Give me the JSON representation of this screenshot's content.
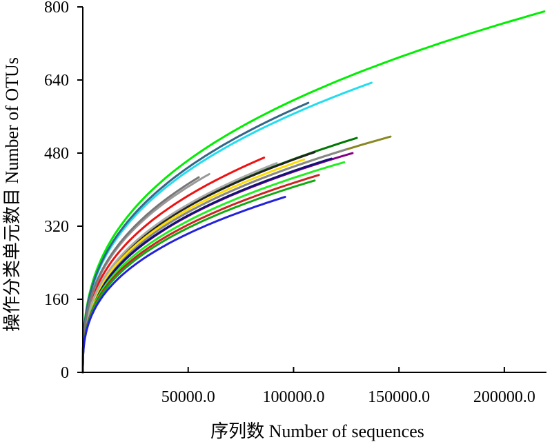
{
  "chart_data": {
    "type": "line",
    "title": "",
    "xlabel": "序列数 Number of sequences",
    "ylabel": "操作分类单元数目 Number of OTUs",
    "xlim": [
      0,
      220000
    ],
    "ylim": [
      0,
      800
    ],
    "x_ticks": [
      50000,
      100000,
      150000,
      200000
    ],
    "x_tick_labels": [
      "50000.0",
      "100000.0",
      "150000.0",
      "200000.0"
    ],
    "y_ticks": [
      0,
      160,
      320,
      480,
      640,
      800
    ],
    "y_tick_labels": [
      "0",
      "160",
      "320",
      "480",
      "640",
      "800"
    ],
    "grid": false,
    "legend": "none",
    "curve_model": "y = ymax * x^0.36 / xmax^0.36 (rarefaction curves, estimated endpoints)",
    "series": [
      {
        "color": "#00ee00",
        "xmax": 219000,
        "ymax": 790
      },
      {
        "color": "#22ddee",
        "xmax": 137000,
        "ymax": 634
      },
      {
        "color": "#336688",
        "xmax": 107000,
        "ymax": 590
      },
      {
        "color": "#888822",
        "xmax": 146000,
        "ymax": 516
      },
      {
        "color": "#007700",
        "xmax": 130000,
        "ymax": 513
      },
      {
        "color": "#888888",
        "xmax": 125000,
        "ymax": 488
      },
      {
        "color": "#880088",
        "xmax": 128000,
        "ymax": 480
      },
      {
        "color": "#222222",
        "xmax": 110000,
        "ymax": 482
      },
      {
        "color": "#111177",
        "xmax": 118000,
        "ymax": 468
      },
      {
        "color": "#ffdd00",
        "xmax": 105000,
        "ymax": 466
      },
      {
        "color": "#22ee22",
        "xmax": 124000,
        "ymax": 460
      },
      {
        "color": "#ee1111",
        "xmax": 86000,
        "ymax": 470
      },
      {
        "color": "#aaaaaa",
        "xmax": 92000,
        "ymax": 458
      },
      {
        "color": "#999999",
        "xmax": 60000,
        "ymax": 434
      },
      {
        "color": "#777777",
        "xmax": 55000,
        "ymax": 427
      },
      {
        "color": "#cc2222",
        "xmax": 112000,
        "ymax": 432
      },
      {
        "color": "#11aa11",
        "xmax": 110000,
        "ymax": 420
      },
      {
        "color": "#2222dd",
        "xmax": 96000,
        "ymax": 384
      }
    ]
  }
}
